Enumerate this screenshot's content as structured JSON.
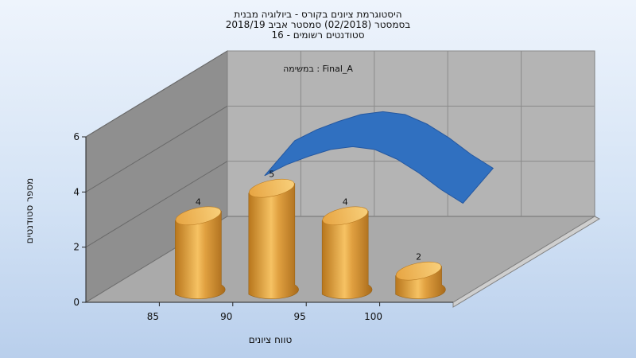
{
  "title": {
    "line1": "היסטוגרמת ציונים בקורס - ביולוגיה מבנית",
    "line2": "בסמסטר  (02/2018)  סמסטר אביב 2018/19",
    "line3": "סטודנטים רשומים - 16"
  },
  "subtitle": "במשימה : Final_A",
  "colors": {
    "bar": "#e0a040",
    "curve": "#3070c0",
    "wall": "#a0a0a0",
    "floor": "#b4b4b4"
  },
  "chart_data": {
    "type": "bar",
    "title": "היסטוגרמת ציונים בקורס - ביולוגיה מבנית",
    "subtitle": "במשימה : Final_A",
    "xlabel": "טווח ציונים",
    "ylabel": "מספר סטודנטים",
    "x_ticks": [
      "85",
      "90",
      "95",
      "100"
    ],
    "y_ticks": [
      "0",
      "2",
      "4",
      "6"
    ],
    "ylim": [
      0,
      6
    ],
    "categories": [
      "85",
      "90",
      "95",
      "100"
    ],
    "values": [
      4,
      5,
      4,
      2
    ],
    "data_labels": [
      "4",
      "5",
      "4",
      "2"
    ],
    "curve": {
      "x": [
        90,
        91.5,
        93,
        94.5,
        96,
        97.5,
        99,
        100.5,
        102,
        103.5
      ],
      "y": [
        3.9,
        4.3,
        4.6,
        4.85,
        4.95,
        4.85,
        4.5,
        4.0,
        3.4,
        2.9
      ]
    },
    "grid": true,
    "style": "3d"
  }
}
